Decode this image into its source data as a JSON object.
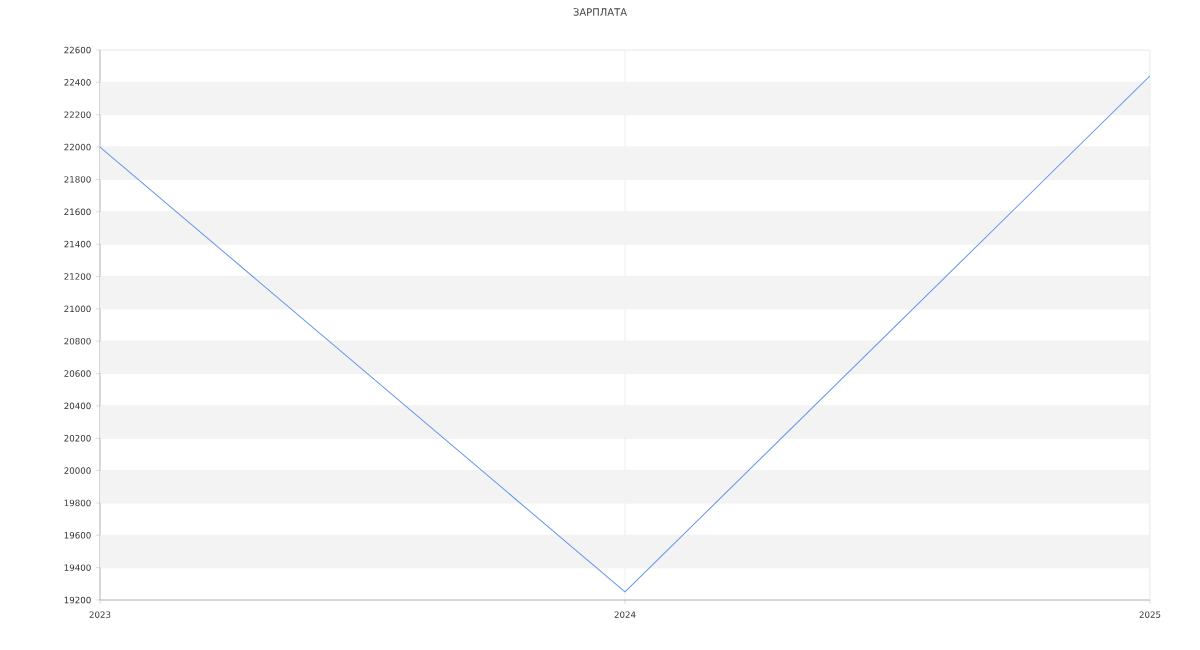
{
  "chart_data": {
    "type": "line",
    "title": "ЗАРПЛАТА",
    "x": [
      2023,
      2024,
      2025
    ],
    "values": [
      22000,
      19250,
      22440
    ],
    "color": "#6495ed",
    "xlim": [
      2023,
      2025
    ],
    "xticks": [
      2023,
      2024,
      2025
    ],
    "ylim": [
      19200,
      22600
    ],
    "yticks": [
      19200,
      19400,
      19600,
      19800,
      20000,
      20200,
      20400,
      20600,
      20800,
      21000,
      21200,
      21400,
      21600,
      21800,
      22000,
      22200,
      22400,
      22600
    ],
    "bands": [
      {
        "axis": "y",
        "from": 19400,
        "to": 19600,
        "color": "#f3f3f3"
      },
      {
        "axis": "y",
        "from": 19800,
        "to": 20000,
        "color": "#f3f3f3"
      },
      {
        "axis": "y",
        "from": 20200,
        "to": 20400,
        "color": "#f3f3f3"
      },
      {
        "axis": "y",
        "from": 20600,
        "to": 20800,
        "color": "#f3f3f3"
      },
      {
        "axis": "y",
        "from": 21000,
        "to": 21200,
        "color": "#f3f3f3"
      },
      {
        "axis": "y",
        "from": 21400,
        "to": 21600,
        "color": "#f3f3f3"
      },
      {
        "axis": "y",
        "from": 21800,
        "to": 22000,
        "color": "#f3f3f3"
      },
      {
        "axis": "y",
        "from": 22200,
        "to": 22400,
        "color": "#f3f3f3"
      }
    ],
    "grid": true
  }
}
